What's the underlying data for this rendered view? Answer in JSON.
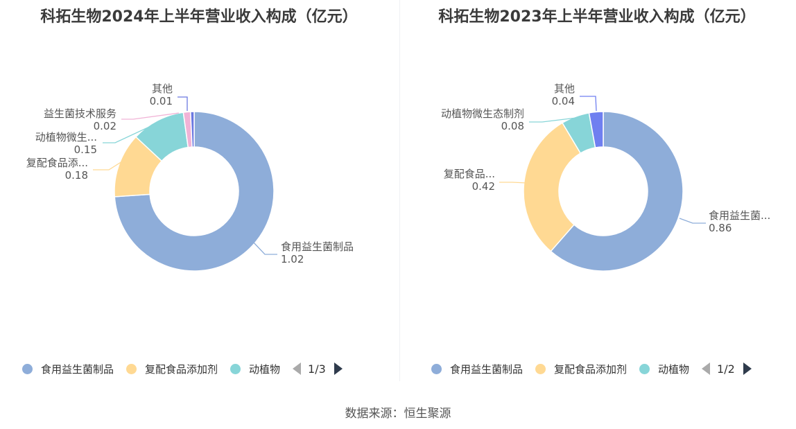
{
  "chart_data": [
    {
      "type": "pie",
      "title": "科拓生物2024年上半年营业收入构成（亿元）",
      "slices": [
        {
          "label": "食用益生菌制品",
          "value": 1.02,
          "value_label": "1.02",
          "color": "#8eadd9"
        },
        {
          "label": "复配食品添...",
          "value": 0.18,
          "value_label": "0.18",
          "color": "#ffd993"
        },
        {
          "label": "动植物微生...",
          "value": 0.15,
          "value_label": "0.15",
          "color": "#87d5d8"
        },
        {
          "label": "益生菌技术服务",
          "value": 0.02,
          "value_label": "0.02",
          "color": "#f1b3d6"
        },
        {
          "label": "其他",
          "value": 0.01,
          "value_label": "0.01",
          "color": "#6b78e0"
        }
      ],
      "legend": {
        "position": "bottom",
        "items": [
          {
            "label": "食用益生菌制品",
            "color": "#8eadd9"
          },
          {
            "label": "复配食品添加剂",
            "color": "#ffd993"
          },
          {
            "label": "动植物",
            "color": "#87d5d8"
          }
        ],
        "page": "1/3"
      }
    },
    {
      "type": "pie",
      "title": "科拓生物2023年上半年营业收入构成（亿元）",
      "slices": [
        {
          "label": "食用益生菌...",
          "value": 0.86,
          "value_label": "0.86",
          "color": "#8eadd9"
        },
        {
          "label": "复配食品...",
          "value": 0.42,
          "value_label": "0.42",
          "color": "#ffd993"
        },
        {
          "label": "动植物微生态制剂",
          "value": 0.08,
          "value_label": "0.08",
          "color": "#87d5d8"
        },
        {
          "label": "其他",
          "value": 0.04,
          "value_label": "0.04",
          "color": "#6f7ff0"
        }
      ],
      "legend": {
        "position": "bottom",
        "items": [
          {
            "label": "食用益生菌制品",
            "color": "#8eadd9"
          },
          {
            "label": "复配食品添加剂",
            "color": "#ffd993"
          },
          {
            "label": "动植物",
            "color": "#87d5d8"
          }
        ],
        "page": "1/2"
      }
    }
  ],
  "footer": {
    "source": "数据来源：恒生聚源"
  }
}
